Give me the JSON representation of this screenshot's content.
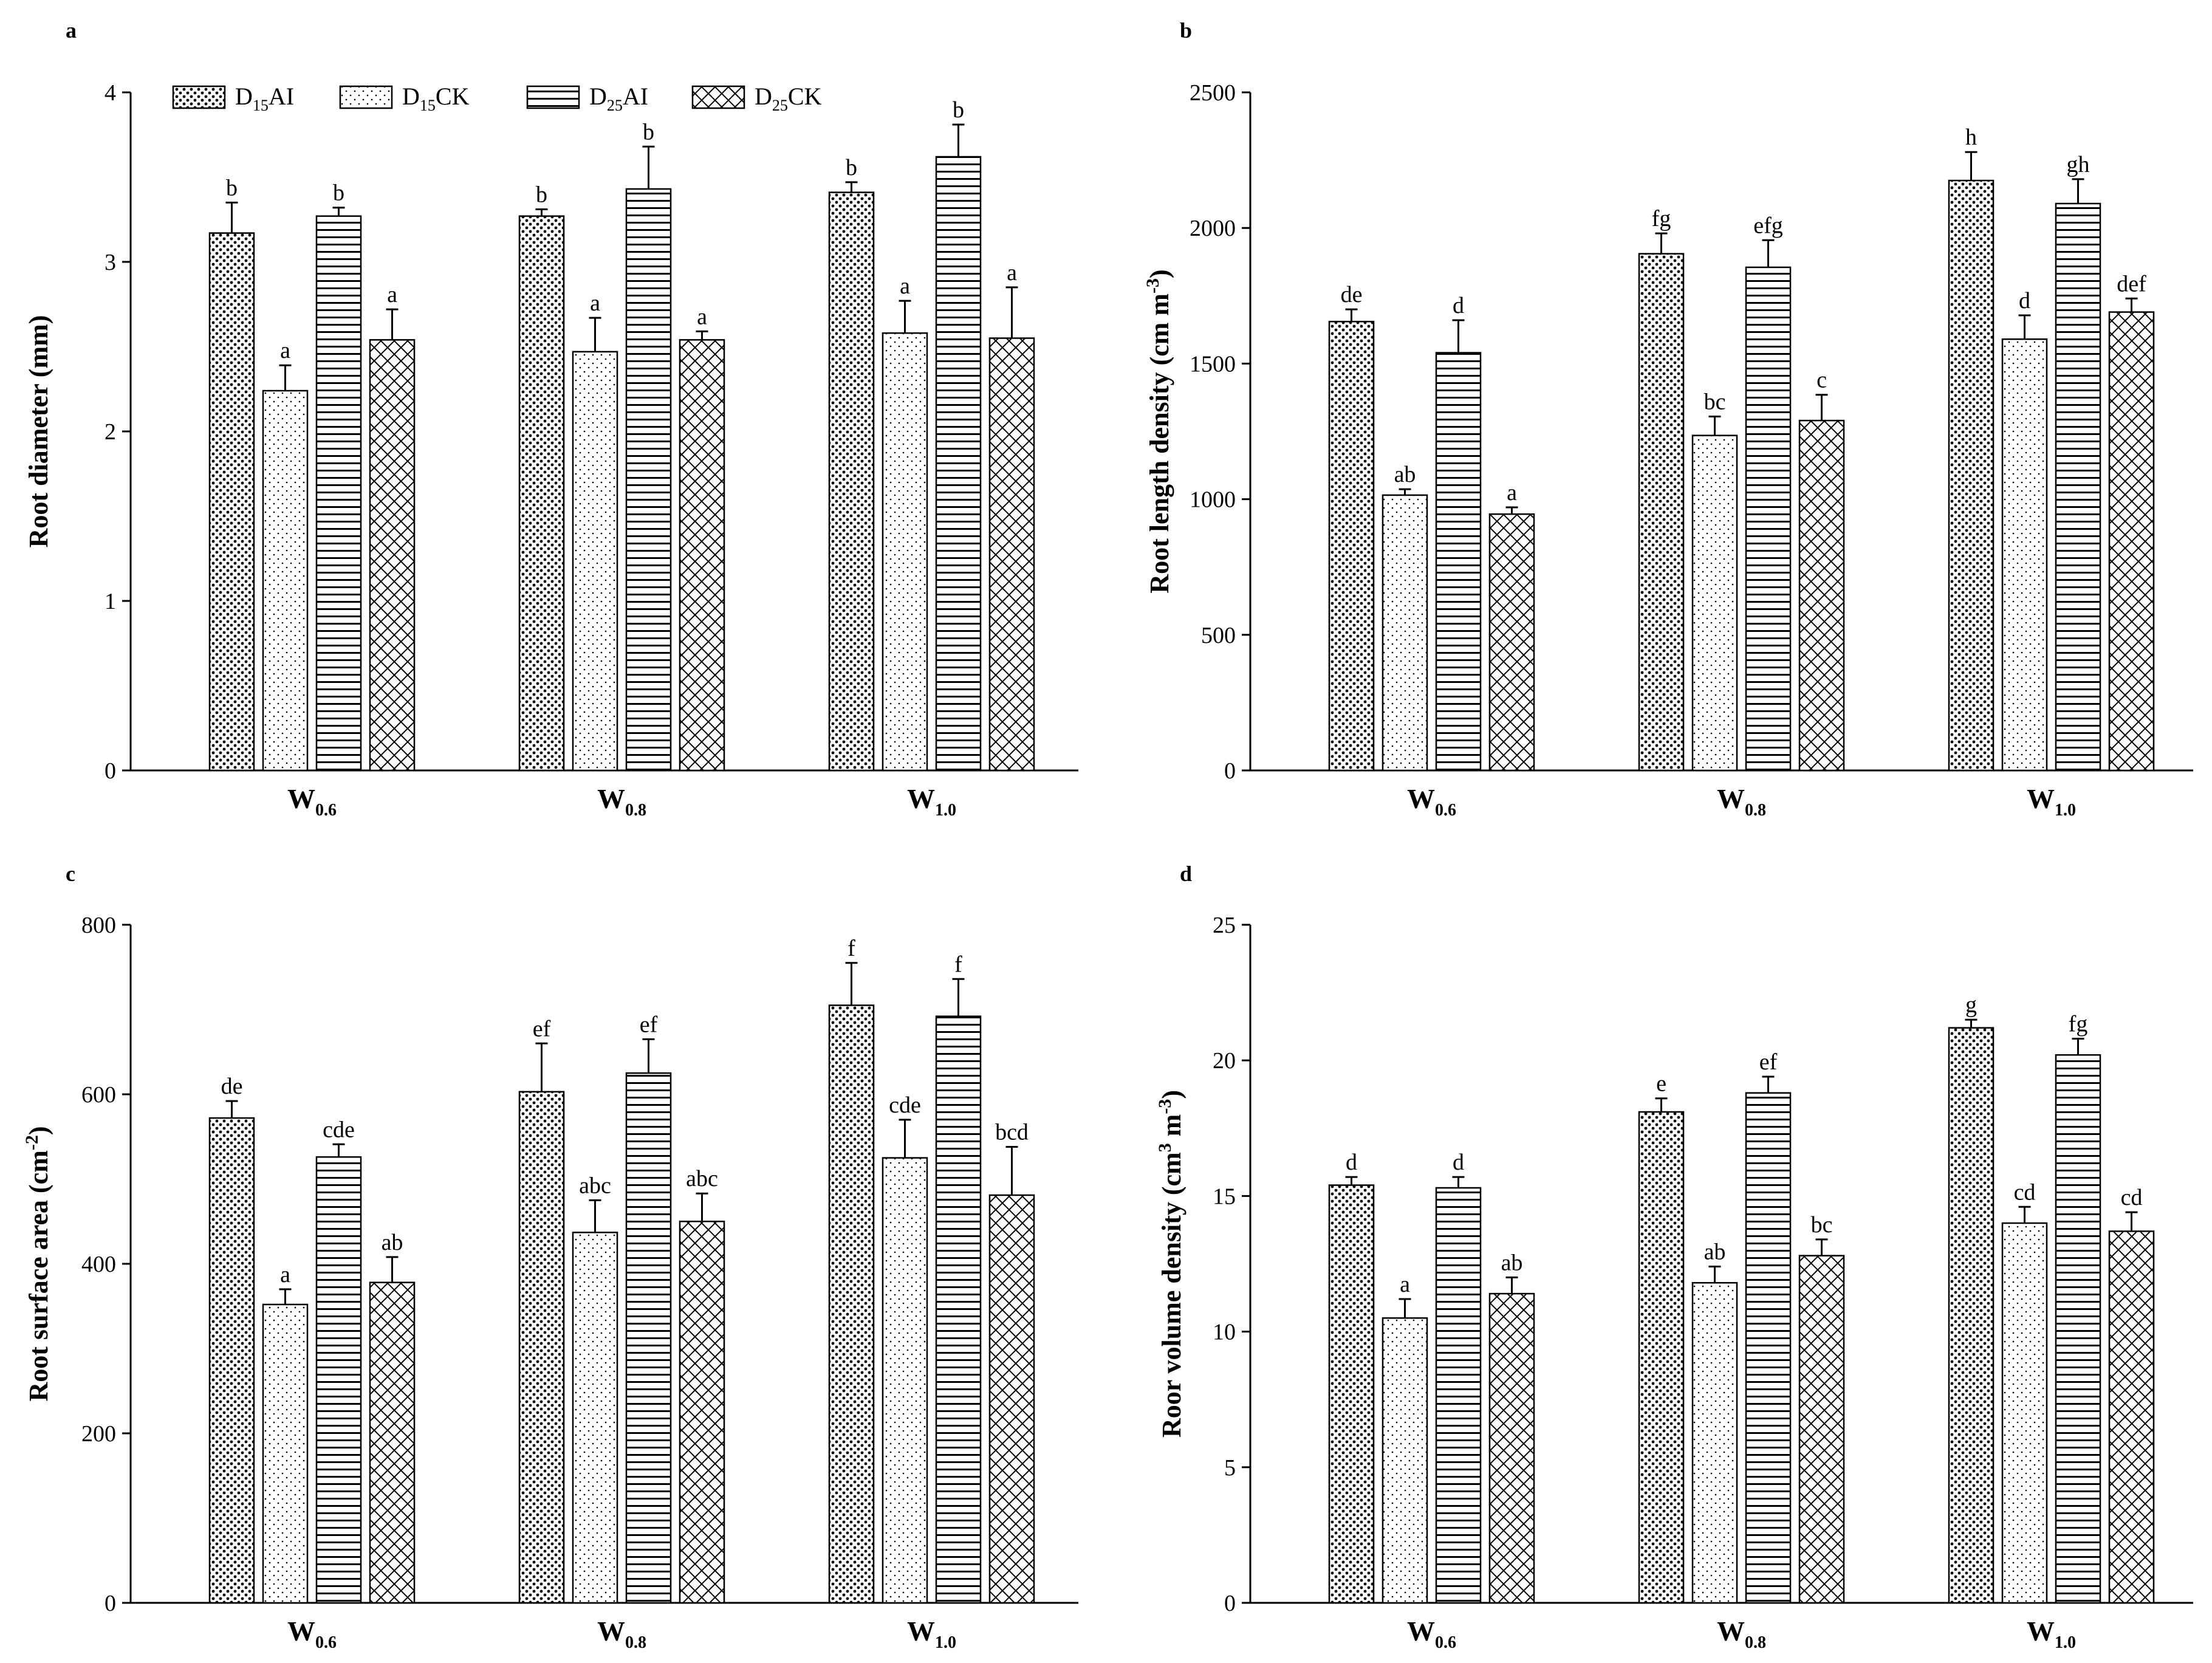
{
  "legend": [
    {
      "base": "D",
      "sub": "15",
      "suffix": "AI",
      "pattern": "dots-dense"
    },
    {
      "base": "D",
      "sub": "15",
      "suffix": "CK",
      "pattern": "dots-sparse"
    },
    {
      "base": "D",
      "sub": "25",
      "suffix": "AI",
      "pattern": "hlines"
    },
    {
      "base": "D",
      "sub": "25",
      "suffix": "CK",
      "pattern": "crosshatch"
    }
  ],
  "categories": [
    {
      "base": "W",
      "sub": "0.6"
    },
    {
      "base": "W",
      "sub": "0.8"
    },
    {
      "base": "W",
      "sub": "1.0"
    }
  ],
  "chart_data": [
    {
      "type": "bar",
      "panel": "a",
      "title": "",
      "ylabel": "Root diameter  (mm)",
      "ylim": [
        0,
        4
      ],
      "yticks": [
        0,
        1,
        2,
        3,
        4
      ],
      "categories": [
        "W0.6",
        "W0.8",
        "W1.0"
      ],
      "series": [
        {
          "name": "D15AI",
          "values": [
            3.17,
            3.27,
            3.41
          ],
          "errors": [
            0.18,
            0.04,
            0.06
          ],
          "labels": [
            "b",
            "b",
            "b"
          ]
        },
        {
          "name": "D15CK",
          "values": [
            2.24,
            2.47,
            2.58
          ],
          "errors": [
            0.15,
            0.2,
            0.19
          ],
          "labels": [
            "a",
            "a",
            "a"
          ]
        },
        {
          "name": "D25AI",
          "values": [
            3.27,
            3.43,
            3.62
          ],
          "errors": [
            0.05,
            0.25,
            0.19
          ],
          "labels": [
            "b",
            "b",
            "b"
          ]
        },
        {
          "name": "D25CK",
          "values": [
            2.54,
            2.54,
            2.55
          ],
          "errors": [
            0.18,
            0.05,
            0.3
          ],
          "labels": [
            "a",
            "a",
            "a"
          ]
        }
      ]
    },
    {
      "type": "bar",
      "panel": "b",
      "title": "",
      "ylabel": "Root length density (cm m-3)",
      "ylabel_parts": {
        "text": "Root length density (cm m",
        "sup": "-3",
        "close": ")"
      },
      "ylim": [
        0,
        2500
      ],
      "yticks": [
        0,
        500,
        1000,
        1500,
        2000,
        2500
      ],
      "categories": [
        "W0.6",
        "W0.8",
        "W1.0"
      ],
      "series": [
        {
          "name": "D15AI",
          "values": [
            1655,
            1905,
            2175
          ],
          "errors": [
            45,
            75,
            105
          ],
          "labels": [
            "de",
            "fg",
            "h"
          ]
        },
        {
          "name": "D15CK",
          "values": [
            1015,
            1235,
            1590
          ],
          "errors": [
            22,
            70,
            88
          ],
          "labels": [
            "ab",
            "bc",
            "d"
          ]
        },
        {
          "name": "D25AI",
          "values": [
            1540,
            1855,
            2090
          ],
          "errors": [
            120,
            100,
            90
          ],
          "labels": [
            "d",
            "efg",
            "gh"
          ]
        },
        {
          "name": "D25CK",
          "values": [
            945,
            1290,
            1690
          ],
          "errors": [
            25,
            95,
            50
          ],
          "labels": [
            "a",
            "c",
            "def"
          ]
        }
      ]
    },
    {
      "type": "bar",
      "panel": "c",
      "title": "",
      "ylabel": "Root surface area (cm-2)",
      "ylabel_parts": {
        "text": "Root surface area (cm",
        "sup": "-2",
        "close": ")"
      },
      "ylim": [
        0,
        800
      ],
      "yticks": [
        0,
        200,
        400,
        600,
        800
      ],
      "categories": [
        "W0.6",
        "W0.8",
        "W1.0"
      ],
      "series": [
        {
          "name": "D15AI",
          "values": [
            572,
            603,
            705
          ],
          "errors": [
            20,
            57,
            50
          ],
          "labels": [
            "de",
            "ef",
            "f"
          ]
        },
        {
          "name": "D15CK",
          "values": [
            352,
            437,
            525
          ],
          "errors": [
            18,
            38,
            45
          ],
          "labels": [
            "a",
            "abc",
            "cde"
          ]
        },
        {
          "name": "D25AI",
          "values": [
            526,
            625,
            692
          ],
          "errors": [
            15,
            40,
            44
          ],
          "labels": [
            "cde",
            "ef",
            "f"
          ]
        },
        {
          "name": "D25CK",
          "values": [
            378,
            450,
            481
          ],
          "errors": [
            30,
            33,
            57
          ],
          "labels": [
            "ab",
            "abc",
            "bcd"
          ]
        }
      ]
    },
    {
      "type": "bar",
      "panel": "d",
      "title": "",
      "ylabel": "Roor volume density (cm3 m-3)",
      "ylabel_parts": {
        "text": "Roor volume density (cm",
        "sup": "3",
        "mid": " m",
        "sup2": "-3",
        "close": ")"
      },
      "ylim": [
        0,
        25
      ],
      "yticks": [
        0,
        5,
        10,
        15,
        20,
        25
      ],
      "categories": [
        "W0.6",
        "W0.8",
        "W1.0"
      ],
      "series": [
        {
          "name": "D15AI",
          "values": [
            15.4,
            18.1,
            21.2
          ],
          "errors": [
            0.3,
            0.5,
            0.3
          ],
          "labels": [
            "d",
            "e",
            "g"
          ]
        },
        {
          "name": "D15CK",
          "values": [
            10.5,
            11.8,
            14.0
          ],
          "errors": [
            0.7,
            0.6,
            0.6
          ],
          "labels": [
            "a",
            "ab",
            "cd"
          ]
        },
        {
          "name": "D25AI",
          "values": [
            15.3,
            18.8,
            20.2
          ],
          "errors": [
            0.4,
            0.6,
            0.6
          ],
          "labels": [
            "d",
            "ef",
            "fg"
          ]
        },
        {
          "name": "D25CK",
          "values": [
            11.4,
            12.8,
            13.7
          ],
          "errors": [
            0.6,
            0.6,
            0.7
          ],
          "labels": [
            "ab",
            "bc",
            "cd"
          ]
        }
      ]
    }
  ]
}
